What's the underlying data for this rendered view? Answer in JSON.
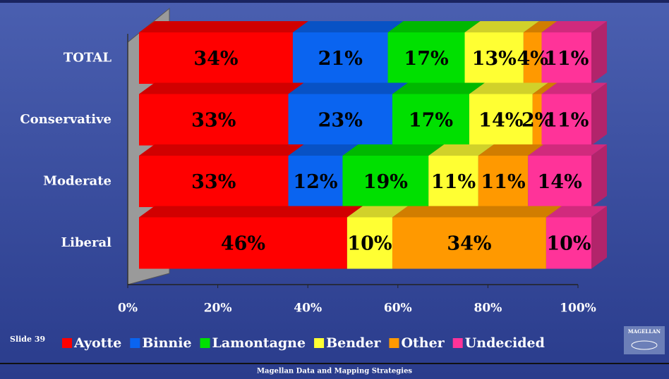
{
  "chart_data": {
    "type": "bar",
    "orientation": "horizontal",
    "stacked": true,
    "categories": [
      "TOTAL",
      "Conservative",
      "Moderate",
      "Liberal"
    ],
    "series": [
      {
        "name": "Ayotte",
        "color": "#ff0000",
        "values": [
          34,
          33,
          33,
          46
        ],
        "value_labels": [
          "34%",
          "33%",
          "33%",
          "46%"
        ]
      },
      {
        "name": "Binnie",
        "color": "#0a64f0",
        "values": [
          21,
          23,
          12,
          null
        ],
        "value_labels": [
          "21%",
          "23%",
          "12%",
          null
        ]
      },
      {
        "name": "Lamontagne",
        "color": "#00e000",
        "values": [
          17,
          17,
          19,
          null
        ],
        "value_labels": [
          "17%",
          "17%",
          "19%",
          null
        ]
      },
      {
        "name": "Bender",
        "color": "#ffff33",
        "values": [
          13,
          14,
          11,
          10
        ],
        "value_labels": [
          "13%",
          "14%",
          "11%",
          "10%"
        ]
      },
      {
        "name": "Other",
        "color": "#ff9900",
        "values": [
          4,
          2,
          11,
          34
        ],
        "value_labels": [
          "4%",
          "2%",
          "11%",
          "34%"
        ]
      },
      {
        "name": "Undecided",
        "color": "#ff3399",
        "values": [
          11,
          11,
          14,
          10
        ],
        "value_labels": [
          "11%",
          "11%",
          "14%",
          "10%"
        ]
      }
    ],
    "xlim": [
      0,
      100
    ],
    "xticks": [
      {
        "value": 0,
        "label": "0%"
      },
      {
        "value": 20,
        "label": "20%"
      },
      {
        "value": 40,
        "label": "40%"
      },
      {
        "value": 60,
        "label": "60%"
      },
      {
        "value": 80,
        "label": "80%"
      },
      {
        "value": 100,
        "label": "100%"
      }
    ]
  },
  "footer": {
    "slide": "Slide 39",
    "company": "Magellan Data and Mapping Strategies",
    "logo": "MAGELLAN"
  }
}
